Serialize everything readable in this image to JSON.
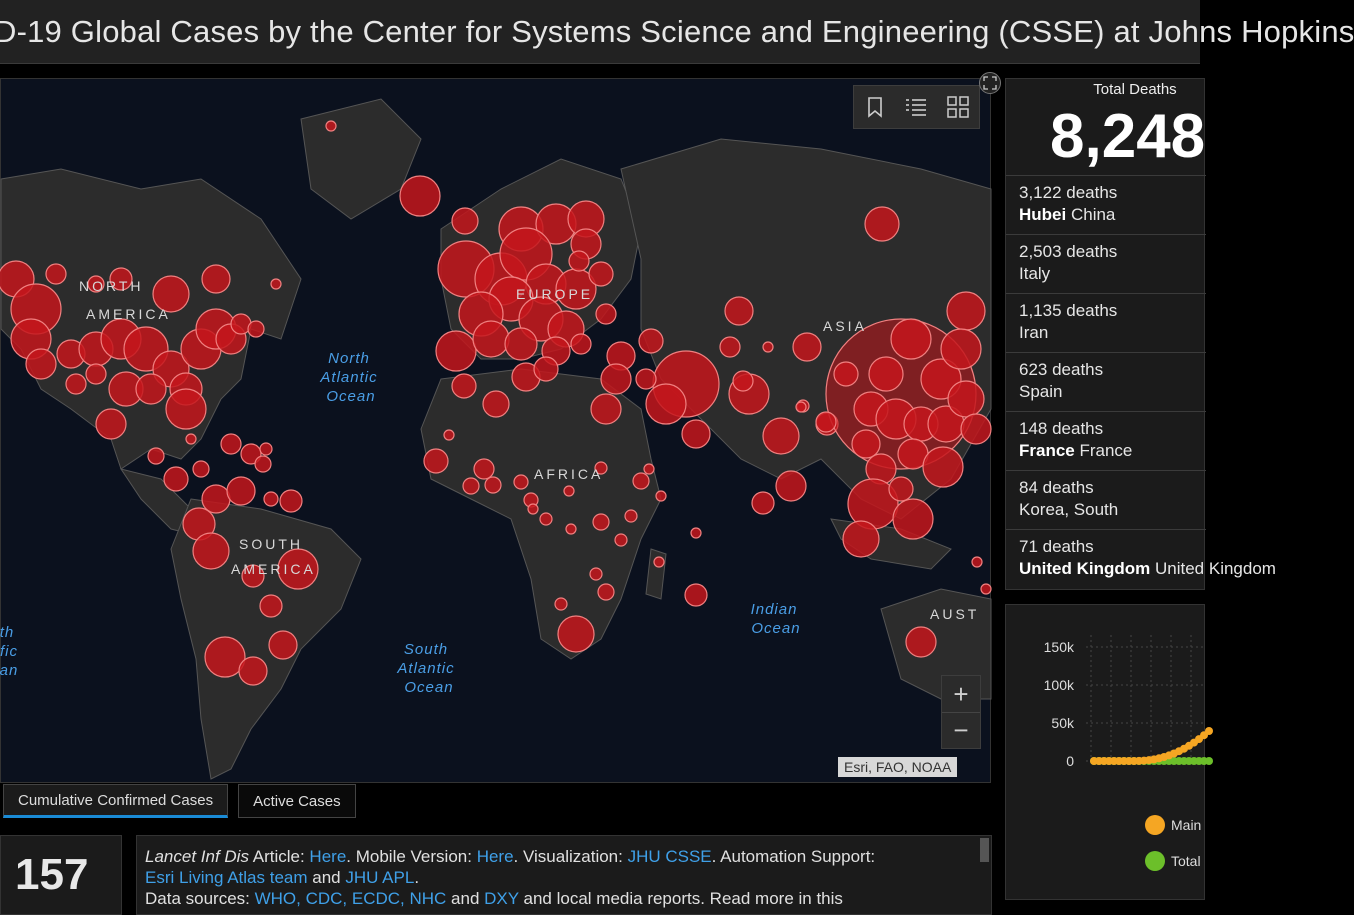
{
  "header": {
    "title": "D-19 Global Cases by the Center for Systems Science and Engineering (CSSE) at Johns Hopkins"
  },
  "map": {
    "labels": {
      "north_america": [
        "NORTH",
        "AMERICA"
      ],
      "south_america": [
        "SOUTH",
        "AMERICA"
      ],
      "europe": "EUROPE",
      "asia": "ASIA",
      "africa": "AFRICA",
      "australia": "AUST",
      "north_atlantic": [
        "North",
        "Atlantic",
        "Ocean"
      ],
      "south_atlantic": [
        "South",
        "Atlantic",
        "Ocean"
      ],
      "indian": [
        "Indian",
        "Ocean"
      ],
      "pacific_edge": [
        "th",
        "fic",
        "an"
      ]
    },
    "attribution": "Esri, FAO, NOAA",
    "zoom_in": "+",
    "zoom_out": "−",
    "tool_icons": [
      "bookmark-icon",
      "list-icon",
      "basemap-gallery-icon"
    ],
    "colors": {
      "bubble_fill": "#c4161c",
      "bubble_stroke": "#f08080",
      "land": "#2c2c2c",
      "ocean": "#0b111e"
    }
  },
  "tabs": [
    {
      "label": "Cumulative Confirmed Cases",
      "active": true
    },
    {
      "label": "Active Cases",
      "active": false
    }
  ],
  "count": "157",
  "info": {
    "line1_prefix": "Lancet Inf Dis",
    "line1_article": " Article: ",
    "here1": "Here",
    "mobile": ". Mobile Version: ",
    "here2": "Here",
    "viz": ". Visualization: ",
    "jhu_csse": "JHU CSSE",
    "automation": ". Automation Support:",
    "esri_team": "Esri Living Atlas team",
    "and": " and ",
    "jhu_apl": "JHU APL",
    "period": ".",
    "line3": "Data sources: ",
    "sources": "WHO, CDC, ECDC, NHC",
    "and2": " and ",
    "dxy": "DXY",
    "rest": " and local media reports. Read more in this"
  },
  "deaths": {
    "label": "Total Deaths",
    "total": "8,248",
    "items": [
      {
        "count": "3,122 deaths",
        "region": "Hubei",
        "country": " China"
      },
      {
        "count": "2,503 deaths",
        "region": "",
        "country": "Italy"
      },
      {
        "count": "1,135 deaths",
        "region": "",
        "country": "Iran"
      },
      {
        "count": "623 deaths",
        "region": "",
        "country": "Spain"
      },
      {
        "count": "148 deaths",
        "region": "France",
        "country": " France"
      },
      {
        "count": "84 deaths",
        "region": "",
        "country": "Korea, South"
      },
      {
        "count": "71 deaths",
        "region": "United Kingdom",
        "country": " United Kingdom"
      }
    ]
  },
  "chart": {
    "yticks": [
      "150k",
      "100k",
      "50k",
      "0"
    ],
    "legend": [
      {
        "name": "Main",
        "color": "#f5a623"
      },
      {
        "name": "Total",
        "color": "#6cbf2a"
      }
    ]
  }
}
